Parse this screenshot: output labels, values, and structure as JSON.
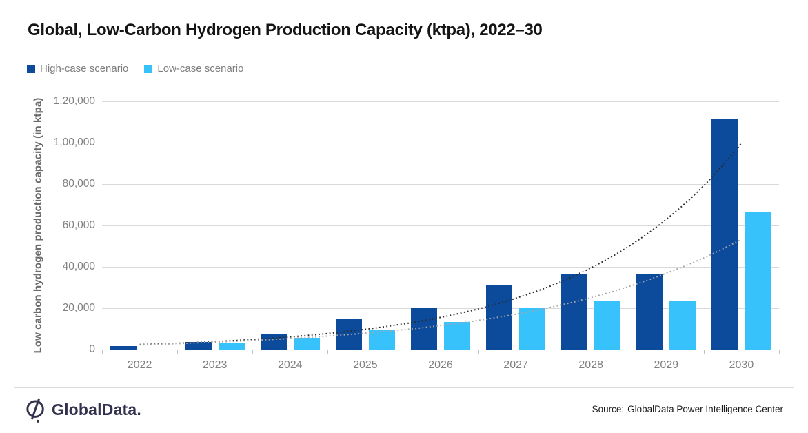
{
  "header": {
    "title": "Global, Low-Carbon Hydrogen Production Capacity (ktpa), 2022–30"
  },
  "legend": {
    "items": [
      {
        "label": "High-case scenario",
        "color": "#0C4A9C"
      },
      {
        "label": "Low-case scenario",
        "color": "#38C2FC"
      }
    ]
  },
  "chart_data": {
    "type": "bar",
    "title": "Global, Low-Carbon Hydrogen Production Capacity (ktpa), 2022–30",
    "categories": [
      "2022",
      "2023",
      "2024",
      "2025",
      "2026",
      "2027",
      "2028",
      "2029",
      "2030"
    ],
    "series": [
      {
        "name": "High-case scenario",
        "color": "#0C4A9C",
        "values": [
          1800,
          3500,
          7200,
          14500,
          20200,
          31300,
          36200,
          36600,
          111500
        ]
      },
      {
        "name": "Low-case scenario",
        "color": "#38C2FC",
        "values": [
          0,
          2900,
          5500,
          9400,
          13200,
          20400,
          23200,
          23500,
          66500
        ]
      }
    ],
    "trendlines": [
      {
        "name": "High-case exponential trend",
        "color": "#2b2b2b",
        "values": [
          2400,
          3850,
          6150,
          9800,
          15550,
          24800,
          39500,
          62900,
          99800
        ]
      },
      {
        "name": "Low-case exponential trend",
        "color": "#a6a6a6",
        "values": [
          2250,
          3600,
          5350,
          7900,
          11600,
          17100,
          25100,
          36900,
          53300
        ]
      }
    ],
    "xlabel": "",
    "ylabel": "Low carbon hydrogen production capacity (in ktpa)",
    "ylim": [
      0,
      120000
    ],
    "ytick_step": 20000,
    "ytick_labels": [
      "0",
      "20,000",
      "40,000",
      "60,000",
      "80,000",
      "1,00,000",
      "1,20,000"
    ],
    "grid": true,
    "legend_position": "top-left"
  },
  "footer": {
    "logo_text": "GlobalData.",
    "source_label": "Source:",
    "source_text": "GlobalData Power Intelligence Center"
  }
}
